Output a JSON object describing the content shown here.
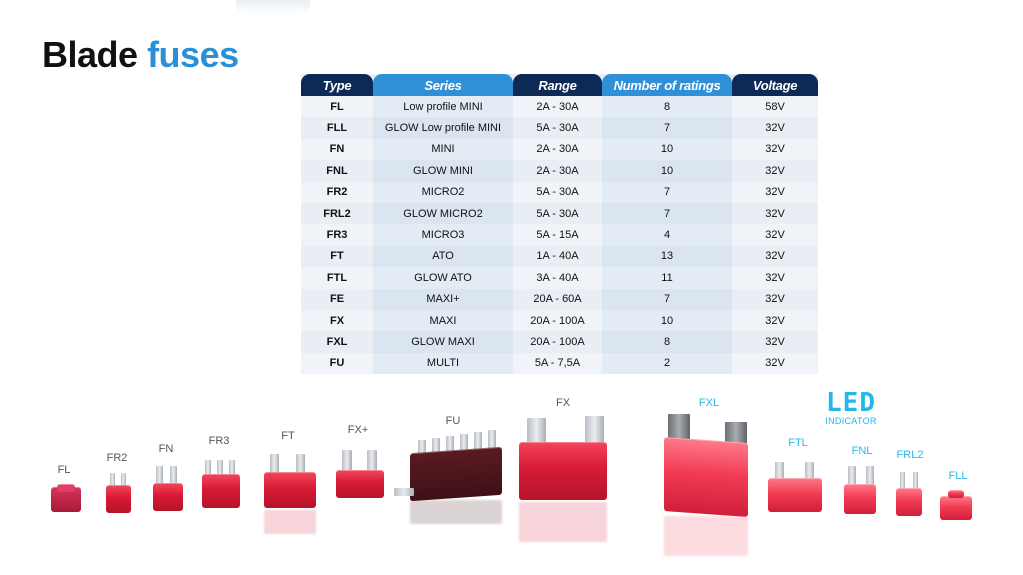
{
  "title": {
    "part1": "Blade",
    "part2": "fuses"
  },
  "table": {
    "headers": [
      "Type",
      "Series",
      "Range",
      "Number of ratings",
      "Voltage"
    ],
    "rows": [
      [
        "FL",
        "Low profile MINI",
        "2A - 30A",
        "8",
        "58V"
      ],
      [
        "FLL",
        "GLOW Low profile MINI",
        "5A - 30A",
        "7",
        "32V"
      ],
      [
        "FN",
        "MINI",
        "2A - 30A",
        "10",
        "32V"
      ],
      [
        "FNL",
        "GLOW MINI",
        "2A - 30A",
        "10",
        "32V"
      ],
      [
        "FR2",
        "MICRO2",
        "5A - 30A",
        "7",
        "32V"
      ],
      [
        "FRL2",
        "GLOW MICRO2",
        "5A - 30A",
        "7",
        "32V"
      ],
      [
        "FR3",
        "MICRO3",
        "5A - 15A",
        "4",
        "32V"
      ],
      [
        "FT",
        "ATO",
        "1A - 40A",
        "13",
        "32V"
      ],
      [
        "FTL",
        "GLOW ATO",
        "3A - 40A",
        "11",
        "32V"
      ],
      [
        "FE",
        "MAXI+",
        "20A - 60A",
        "7",
        "32V"
      ],
      [
        "FX",
        "MAXI",
        "20A - 100A",
        "10",
        "32V"
      ],
      [
        "FXL",
        "GLOW MAXI",
        "20A - 100A",
        "8",
        "32V"
      ],
      [
        "FU",
        "MULTI",
        "5A - 7,5A",
        "2",
        "32V"
      ]
    ]
  },
  "fuse_labels": {
    "fl": "FL",
    "fr2": "FR2",
    "fn": "FN",
    "fr3": "FR3",
    "ft": "FT",
    "fxplus": "FX+",
    "fu": "FU",
    "fx": "FX",
    "fxl": "FXL",
    "ftl": "FTL",
    "fnl": "FNL",
    "frl2": "FRL2",
    "fll": "FLL"
  },
  "led_logo": {
    "big": "LED",
    "small": "INDICATOR"
  },
  "colors": {
    "accent": "#2a8fd6",
    "header_dark": "#0d2a57",
    "header_light": "#2f8fd7",
    "fuse_red": "#d81a35",
    "led_cyan": "#25b6ec"
  }
}
